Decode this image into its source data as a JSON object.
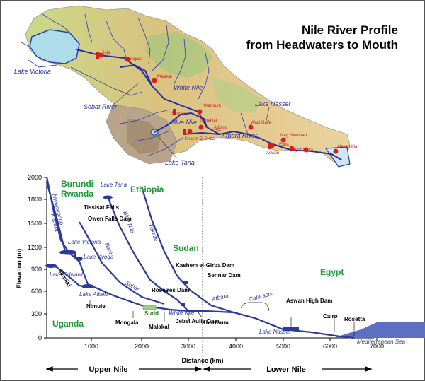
{
  "title": {
    "line1": "Nile River Profile",
    "line2": "from Headwaters to Mouth"
  },
  "map": {
    "labels": {
      "lake_victoria": "Lake Victoria",
      "white_nile": "White Nile",
      "blue_nile": "Blue Nile",
      "sobat_river": "Sobat River",
      "lake_tana": "Lake Tana",
      "atbara_river": "Atbara River",
      "lake_nasser": "Lake Nasser"
    },
    "stations": {
      "malakal": "Malakal",
      "khartoum": "Khartoum",
      "sennar": "Sennar",
      "tamaniat": "Tamaniat",
      "khasm": "Khasm El Girba",
      "wadi_halfa": "Wadi Halfa",
      "nag_hammadi": "Nag Hammadi",
      "aswan": "Aswan",
      "esna": "Esna",
      "asyut": "Asyut",
      "delta": "Delta",
      "alexandria": "Alexandria",
      "jinja": "Jinja",
      "mongalla": "Mongalla",
      "atbara": "Atbara"
    }
  },
  "profile": {
    "y_axis_label": "Elevation (m)",
    "x_axis_label": "Distance (km)",
    "y_ticks": [
      "2000",
      "1800",
      "1500",
      "1200",
      "900",
      "600",
      "300",
      "0"
    ],
    "x_ticks": [
      "1000",
      "2000",
      "3000",
      "4000",
      "5000",
      "6000",
      "7000"
    ],
    "countries": {
      "burundi": "Burundi",
      "rwanda": "Rwanda",
      "ethiopia": "Ethiopia",
      "sudan": "Sudan",
      "egypt": "Egypt",
      "uganda": "Uganda"
    },
    "rivers": {
      "nyawarongo": "Nyawarongo",
      "kagera": "Kagera",
      "blue_nile": "Blue Nile",
      "tekeze": "Tekeze",
      "baro": "Baro",
      "sobat": "Sobat",
      "atbara": "Atbara",
      "semliki": "Semliki",
      "white_nile": "White Nile"
    },
    "features": {
      "lake_tana": "Lake Tana",
      "tissisat": "Tissisat Falls",
      "owen_falls": "Owen Falls Dam",
      "lake_victoria": "Lake Victoria",
      "lake_kyoga": "Lake Kyoga",
      "lake_edward": "Lake Edward",
      "lake_albert": "Lake Albert",
      "nimule": "Nimule",
      "mongala": "Mongala",
      "sudd": "Sudd",
      "malakal": "Malakal",
      "roseires": "Roseires Dam",
      "jebel_aulia": "Jebel Aulia Dam",
      "kashem": "Kashem el-Girba Dam",
      "sennar_dam": "Sennar Dam",
      "khartoum": "Khartoum",
      "cataracts": "Cataracts",
      "lake_nasser": "Lake Nasser",
      "aswan": "Aswan High Dam",
      "cairo": "Cairo",
      "rosetta": "Rosetta",
      "med_sea": "Mediterranean Sea"
    },
    "upper_nile": "Upper Nile",
    "lower_nile": "Lower Nile"
  }
}
